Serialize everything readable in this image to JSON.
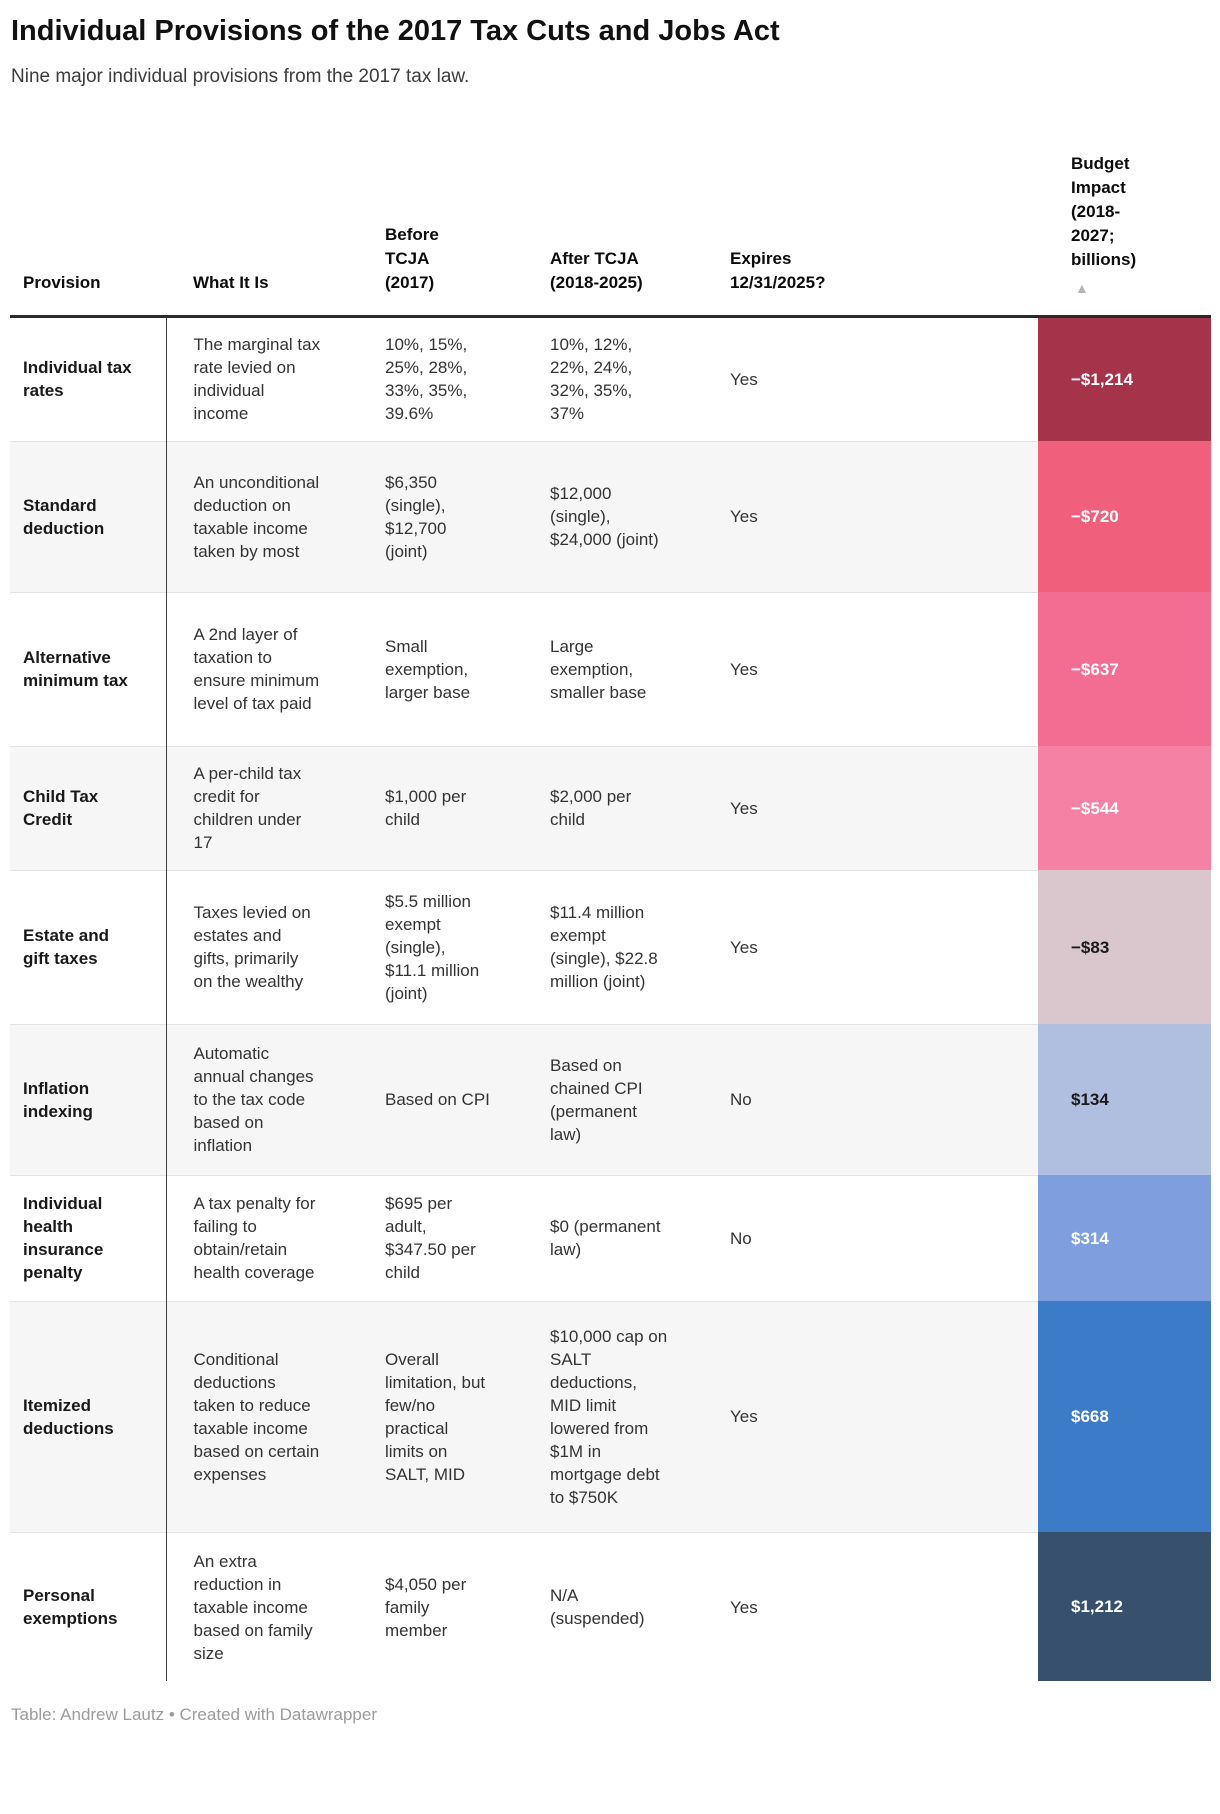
{
  "header": {
    "title": "Individual Provisions of the 2017 Tax Cuts and Jobs Act",
    "subtitle": "Nine major individual provisions from the 2017 tax law."
  },
  "table": {
    "columns": [
      {
        "label": "Provision"
      },
      {
        "label": "What It Is"
      },
      {
        "label": "Before TCJA (2017)"
      },
      {
        "label": "After TCJA (2018-2025)"
      },
      {
        "label": "Expires 12/31/2025?"
      },
      {
        "label": "Budget Impact (2018-2027; billions)"
      }
    ],
    "sort": {
      "column": "Budget Impact (2018-2027; billions)",
      "icon": "▲",
      "icon_color": "#b5b5b5"
    },
    "rows": [
      {
        "provision": "Individual tax rates",
        "what_it_is": "The marginal tax rate levied on individual income",
        "before_tcja": "10%, 15%, 25%, 28%, 33%, 35%, 39.6%",
        "after_tcja": "10%, 12%, 22%, 24%, 32%, 35%, 37%",
        "expires": "Yes",
        "budget_impact": "−$1,214",
        "budget_bg": "#a5344a",
        "budget_fg": "#ffffff"
      },
      {
        "provision": "Standard deduction",
        "what_it_is": "An unconditional deduction on taxable income taken by most",
        "before_tcja": "$6,350 (single), $12,700 (joint)",
        "after_tcja": "$12,000 (single), $24,000 (joint)",
        "expires": "Yes",
        "budget_impact": "−$720",
        "budget_bg": "#f0607d",
        "budget_fg": "#ffffff"
      },
      {
        "provision": "Alternative minimum tax",
        "what_it_is": "A 2nd layer of taxation to ensure minimum level of tax paid",
        "before_tcja": "Small exemption, larger base",
        "after_tcja": "Large exemption, smaller base",
        "expires": "Yes",
        "budget_impact": "−$637",
        "budget_bg": "#f36d92",
        "budget_fg": "#ffffff"
      },
      {
        "provision": "Child Tax Credit",
        "what_it_is": "A per-child tax credit for children under 17",
        "before_tcja": "$1,000 per child",
        "after_tcja": "$2,000 per child",
        "expires": "Yes",
        "budget_impact": "−$544",
        "budget_bg": "#f581a5",
        "budget_fg": "#ffffff"
      },
      {
        "provision": "Estate and gift taxes",
        "what_it_is": "Taxes levied on estates and gifts, primarily on the wealthy",
        "before_tcja": "$5.5 million exempt (single), $11.1 million (joint)",
        "after_tcja": "$11.4 million exempt (single), $22.8 million (joint)",
        "expires": "Yes",
        "budget_impact": "−$83",
        "budget_bg": "#d9c7cd",
        "budget_fg": "#1a1a1a"
      },
      {
        "provision": "Inflation indexing",
        "what_it_is": "Automatic annual changes to the tax code based on inflation",
        "before_tcja": "Based on CPI",
        "after_tcja": "Based on chained CPI (permanent law)",
        "expires": "No",
        "budget_impact": "$134",
        "budget_bg": "#b0bfdf",
        "budget_fg": "#1a1a1a"
      },
      {
        "provision": "Individual health insurance penalty",
        "what_it_is": "A tax penalty for failing to obtain/retain health coverage",
        "before_tcja": "$695 per adult, $347.50 per child",
        "after_tcja": "$0 (permanent law)",
        "expires": "No",
        "budget_impact": "$314",
        "budget_bg": "#7e9ede",
        "budget_fg": "#ffffff"
      },
      {
        "provision": "Itemized deductions",
        "what_it_is": "Conditional deductions taken to reduce taxable income based on certain expenses",
        "before_tcja": "Overall limitation, but few/no practical limits on SALT, MID",
        "after_tcja": "$10,000 cap on SALT deductions, MID limit lowered from $1M in mortgage debt to $750K",
        "expires": "Yes",
        "budget_impact": "$668",
        "budget_bg": "#3b7bc8",
        "budget_fg": "#ffffff"
      },
      {
        "provision": "Personal exemptions",
        "what_it_is": "An extra reduction in taxable income based on family size",
        "before_tcja": "$4,050 per family member",
        "after_tcja": "N/A (suspended)",
        "expires": "Yes",
        "budget_impact": "$1,212",
        "budget_bg": "#36506e",
        "budget_fg": "#ffffff"
      }
    ]
  },
  "footer": {
    "credit_prefix": "Table: Andrew Lautz • Created with ",
    "credit_link": "Datawrapper"
  }
}
